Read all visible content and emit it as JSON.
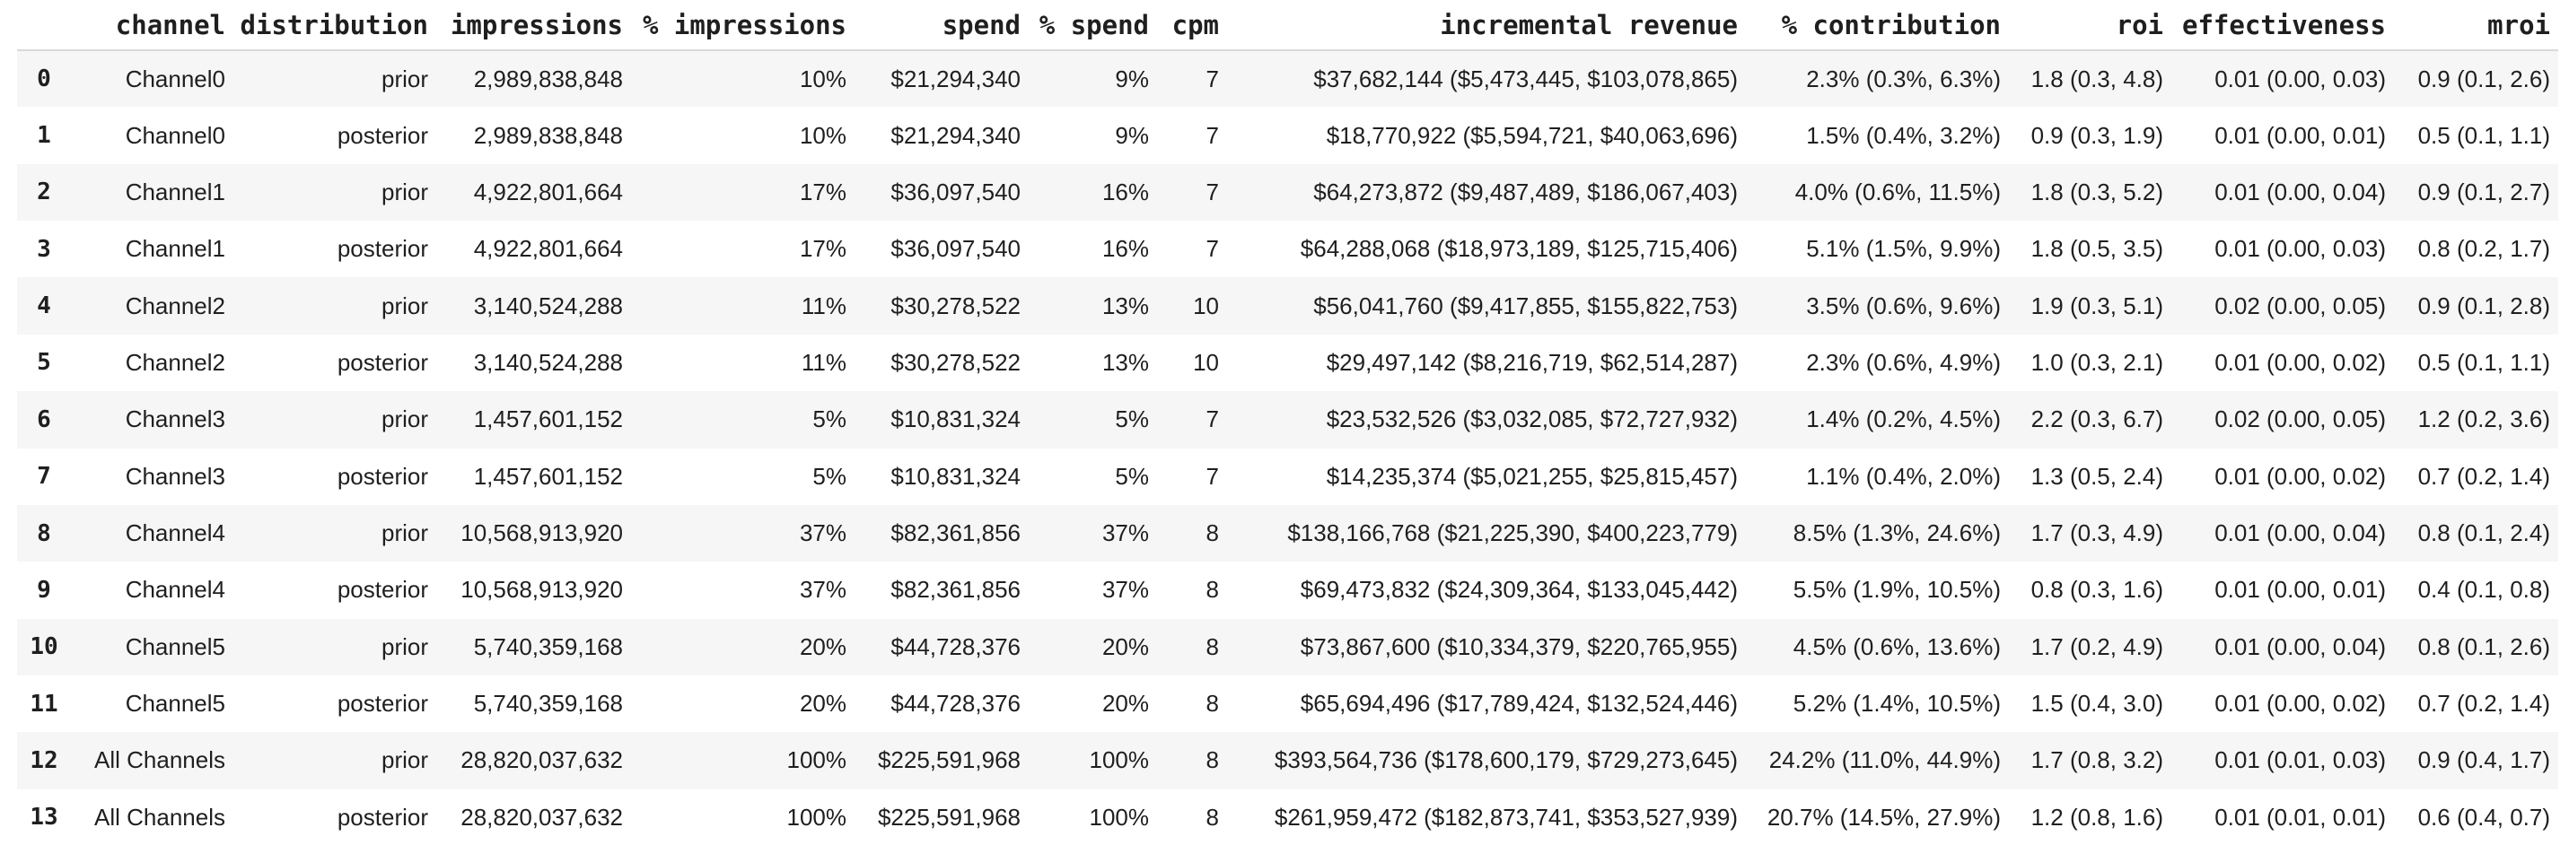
{
  "table": {
    "header": {
      "index_label": "",
      "columns": [
        "channel",
        "distribution",
        "impressions",
        "% impressions",
        "spend",
        "% spend",
        "cpm",
        "incremental revenue",
        "% contribution",
        "roi",
        "effectiveness",
        "mroi"
      ]
    },
    "col_keys": [
      "channel",
      "distribution",
      "impressions",
      "pct-impressions",
      "spend",
      "pct-spend",
      "cpm",
      "incremental-revenue",
      "pct-contribution",
      "roi",
      "effectiveness",
      "mroi"
    ],
    "rows": [
      [
        "0",
        "Channel0",
        "prior",
        "2,989,838,848",
        "10%",
        "$21,294,340",
        "9%",
        "7",
        "$37,682,144 ($5,473,445, $103,078,865)",
        "2.3% (0.3%, 6.3%)",
        "1.8 (0.3, 4.8)",
        "0.01 (0.00, 0.03)",
        "0.9 (0.1, 2.6)"
      ],
      [
        "1",
        "Channel0",
        "posterior",
        "2,989,838,848",
        "10%",
        "$21,294,340",
        "9%",
        "7",
        "$18,770,922 ($5,594,721, $40,063,696)",
        "1.5% (0.4%, 3.2%)",
        "0.9 (0.3, 1.9)",
        "0.01 (0.00, 0.01)",
        "0.5 (0.1, 1.1)"
      ],
      [
        "2",
        "Channel1",
        "prior",
        "4,922,801,664",
        "17%",
        "$36,097,540",
        "16%",
        "7",
        "$64,273,872 ($9,487,489, $186,067,403)",
        "4.0% (0.6%, 11.5%)",
        "1.8 (0.3, 5.2)",
        "0.01 (0.00, 0.04)",
        "0.9 (0.1, 2.7)"
      ],
      [
        "3",
        "Channel1",
        "posterior",
        "4,922,801,664",
        "17%",
        "$36,097,540",
        "16%",
        "7",
        "$64,288,068 ($18,973,189, $125,715,406)",
        "5.1% (1.5%, 9.9%)",
        "1.8 (0.5, 3.5)",
        "0.01 (0.00, 0.03)",
        "0.8 (0.2, 1.7)"
      ],
      [
        "4",
        "Channel2",
        "prior",
        "3,140,524,288",
        "11%",
        "$30,278,522",
        "13%",
        "10",
        "$56,041,760 ($9,417,855, $155,822,753)",
        "3.5% (0.6%, 9.6%)",
        "1.9 (0.3, 5.1)",
        "0.02 (0.00, 0.05)",
        "0.9 (0.1, 2.8)"
      ],
      [
        "5",
        "Channel2",
        "posterior",
        "3,140,524,288",
        "11%",
        "$30,278,522",
        "13%",
        "10",
        "$29,497,142 ($8,216,719, $62,514,287)",
        "2.3% (0.6%, 4.9%)",
        "1.0 (0.3, 2.1)",
        "0.01 (0.00, 0.02)",
        "0.5 (0.1, 1.1)"
      ],
      [
        "6",
        "Channel3",
        "prior",
        "1,457,601,152",
        "5%",
        "$10,831,324",
        "5%",
        "7",
        "$23,532,526 ($3,032,085, $72,727,932)",
        "1.4% (0.2%, 4.5%)",
        "2.2 (0.3, 6.7)",
        "0.02 (0.00, 0.05)",
        "1.2 (0.2, 3.6)"
      ],
      [
        "7",
        "Channel3",
        "posterior",
        "1,457,601,152",
        "5%",
        "$10,831,324",
        "5%",
        "7",
        "$14,235,374 ($5,021,255, $25,815,457)",
        "1.1% (0.4%, 2.0%)",
        "1.3 (0.5, 2.4)",
        "0.01 (0.00, 0.02)",
        "0.7 (0.2, 1.4)"
      ],
      [
        "8",
        "Channel4",
        "prior",
        "10,568,913,920",
        "37%",
        "$82,361,856",
        "37%",
        "8",
        "$138,166,768 ($21,225,390, $400,223,779)",
        "8.5% (1.3%, 24.6%)",
        "1.7 (0.3, 4.9)",
        "0.01 (0.00, 0.04)",
        "0.8 (0.1, 2.4)"
      ],
      [
        "9",
        "Channel4",
        "posterior",
        "10,568,913,920",
        "37%",
        "$82,361,856",
        "37%",
        "8",
        "$69,473,832 ($24,309,364, $133,045,442)",
        "5.5% (1.9%, 10.5%)",
        "0.8 (0.3, 1.6)",
        "0.01 (0.00, 0.01)",
        "0.4 (0.1, 0.8)"
      ],
      [
        "10",
        "Channel5",
        "prior",
        "5,740,359,168",
        "20%",
        "$44,728,376",
        "20%",
        "8",
        "$73,867,600 ($10,334,379, $220,765,955)",
        "4.5% (0.6%, 13.6%)",
        "1.7 (0.2, 4.9)",
        "0.01 (0.00, 0.04)",
        "0.8 (0.1, 2.6)"
      ],
      [
        "11",
        "Channel5",
        "posterior",
        "5,740,359,168",
        "20%",
        "$44,728,376",
        "20%",
        "8",
        "$65,694,496 ($17,789,424, $132,524,446)",
        "5.2% (1.4%, 10.5%)",
        "1.5 (0.4, 3.0)",
        "0.01 (0.00, 0.02)",
        "0.7 (0.2, 1.4)"
      ],
      [
        "12",
        "All Channels",
        "prior",
        "28,820,037,632",
        "100%",
        "$225,591,968",
        "100%",
        "8",
        "$393,564,736 ($178,600,179, $729,273,645)",
        "24.2% (11.0%, 44.9%)",
        "1.7 (0.8, 3.2)",
        "0.01 (0.01, 0.03)",
        "0.9 (0.4, 1.7)"
      ],
      [
        "13",
        "All Channels",
        "posterior",
        "28,820,037,632",
        "100%",
        "$225,591,968",
        "100%",
        "8",
        "$261,959,472 ($182,873,741, $353,527,939)",
        "20.7% (14.5%, 27.9%)",
        "1.2 (0.8, 1.6)",
        "0.01 (0.01, 0.01)",
        "0.6 (0.4, 0.7)"
      ]
    ]
  },
  "colors": {
    "text": "#1f1f1f",
    "row_stripe": "#f6f6f6",
    "header_divider": "#d9d9d9",
    "background": "#ffffff"
  }
}
